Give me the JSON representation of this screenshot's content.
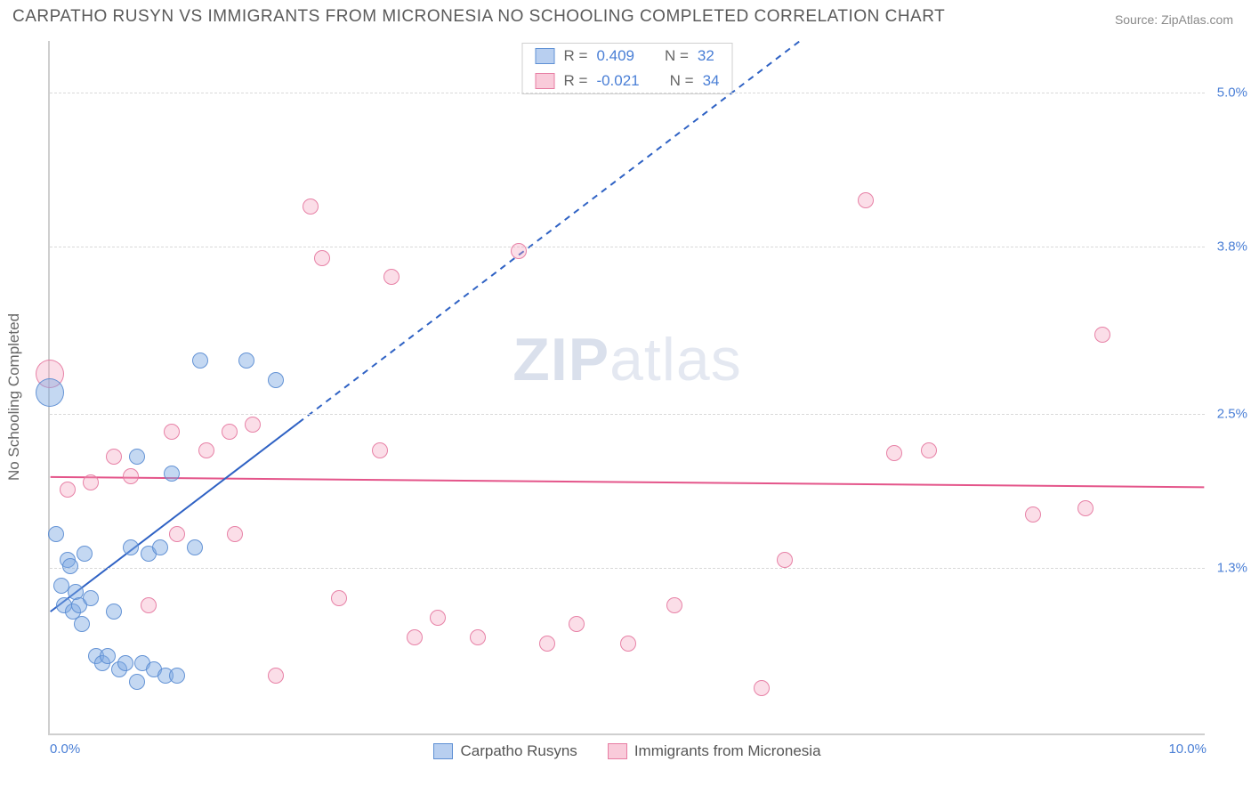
{
  "title": "CARPATHO RUSYN VS IMMIGRANTS FROM MICRONESIA NO SCHOOLING COMPLETED CORRELATION CHART",
  "source": "Source: ZipAtlas.com",
  "ylabel": "No Schooling Completed",
  "watermark_a": "ZIP",
  "watermark_b": "atlas",
  "chart": {
    "type": "scatter",
    "xlim": [
      0.0,
      10.0
    ],
    "ylim": [
      0.0,
      5.4
    ],
    "x_ticks": [
      {
        "v": 0.0,
        "label": "0.0%"
      },
      {
        "v": 10.0,
        "label": "10.0%"
      }
    ],
    "y_ticks": [
      {
        "v": 1.3,
        "label": "1.3%"
      },
      {
        "v": 2.5,
        "label": "2.5%"
      },
      {
        "v": 3.8,
        "label": "3.8%"
      },
      {
        "v": 5.0,
        "label": "5.0%"
      }
    ],
    "background_color": "#ffffff",
    "grid_color": "#d9d9d9",
    "point_radius": 9,
    "series": {
      "blue": {
        "label": "Carpatho Rusyns",
        "fill": "rgba(125,168,227,0.45)",
        "stroke": "rgba(90,140,210,0.9)",
        "R": "0.409",
        "N": "32",
        "trend": {
          "x1": 0.0,
          "y1": 0.95,
          "x2": 10.0,
          "y2": 7.8,
          "solid_xmax": 2.15,
          "color": "#2f62c4",
          "width": 2
        },
        "points": [
          {
            "x": 0.0,
            "y": 2.65,
            "r": 16
          },
          {
            "x": 0.05,
            "y": 1.55
          },
          {
            "x": 0.1,
            "y": 1.15
          },
          {
            "x": 0.12,
            "y": 1.0
          },
          {
            "x": 0.15,
            "y": 1.35
          },
          {
            "x": 0.18,
            "y": 1.3
          },
          {
            "x": 0.2,
            "y": 0.95
          },
          {
            "x": 0.22,
            "y": 1.1
          },
          {
            "x": 0.25,
            "y": 1.0
          },
          {
            "x": 0.28,
            "y": 0.85
          },
          {
            "x": 0.3,
            "y": 1.4
          },
          {
            "x": 0.35,
            "y": 1.05
          },
          {
            "x": 0.4,
            "y": 0.6
          },
          {
            "x": 0.45,
            "y": 0.55
          },
          {
            "x": 0.5,
            "y": 0.6
          },
          {
            "x": 0.55,
            "y": 0.95
          },
          {
            "x": 0.6,
            "y": 0.5
          },
          {
            "x": 0.65,
            "y": 0.55
          },
          {
            "x": 0.7,
            "y": 1.45
          },
          {
            "x": 0.75,
            "y": 0.4
          },
          {
            "x": 0.8,
            "y": 0.55
          },
          {
            "x": 0.85,
            "y": 1.4
          },
          {
            "x": 0.9,
            "y": 0.5
          },
          {
            "x": 0.95,
            "y": 1.45
          },
          {
            "x": 1.0,
            "y": 0.45
          },
          {
            "x": 1.05,
            "y": 2.02
          },
          {
            "x": 1.1,
            "y": 0.45
          },
          {
            "x": 1.25,
            "y": 1.45
          },
          {
            "x": 1.3,
            "y": 2.9
          },
          {
            "x": 1.7,
            "y": 2.9
          },
          {
            "x": 1.95,
            "y": 2.75
          },
          {
            "x": 0.75,
            "y": 2.15
          }
        ]
      },
      "pink": {
        "label": "Immigrants from Micronesia",
        "fill": "rgba(244,160,188,0.35)",
        "stroke": "rgba(230,120,160,0.9)",
        "R": "-0.021",
        "N": "34",
        "trend": {
          "x1": 0.0,
          "y1": 2.0,
          "x2": 10.0,
          "y2": 1.92,
          "solid_xmax": 10.0,
          "color": "#e4558a",
          "width": 2
        },
        "points": [
          {
            "x": 0.0,
            "y": 2.8,
            "r": 16
          },
          {
            "x": 0.15,
            "y": 1.9
          },
          {
            "x": 0.35,
            "y": 1.95
          },
          {
            "x": 0.55,
            "y": 2.15
          },
          {
            "x": 0.7,
            "y": 2.0
          },
          {
            "x": 0.85,
            "y": 1.0
          },
          {
            "x": 1.05,
            "y": 2.35
          },
          {
            "x": 1.1,
            "y": 1.55
          },
          {
            "x": 1.35,
            "y": 2.2
          },
          {
            "x": 1.55,
            "y": 2.35
          },
          {
            "x": 1.6,
            "y": 1.55
          },
          {
            "x": 1.75,
            "y": 2.4
          },
          {
            "x": 1.95,
            "y": 0.45
          },
          {
            "x": 2.25,
            "y": 4.1
          },
          {
            "x": 2.35,
            "y": 3.7
          },
          {
            "x": 2.5,
            "y": 1.05
          },
          {
            "x": 2.85,
            "y": 2.2
          },
          {
            "x": 2.95,
            "y": 3.55
          },
          {
            "x": 3.15,
            "y": 0.75
          },
          {
            "x": 3.35,
            "y": 0.9
          },
          {
            "x": 3.7,
            "y": 0.75
          },
          {
            "x": 4.05,
            "y": 3.75
          },
          {
            "x": 4.3,
            "y": 0.7
          },
          {
            "x": 4.55,
            "y": 0.85
          },
          {
            "x": 5.0,
            "y": 0.7
          },
          {
            "x": 5.4,
            "y": 1.0
          },
          {
            "x": 6.15,
            "y": 0.35
          },
          {
            "x": 6.35,
            "y": 1.35
          },
          {
            "x": 7.05,
            "y": 4.15
          },
          {
            "x": 7.3,
            "y": 2.18
          },
          {
            "x": 7.6,
            "y": 2.2
          },
          {
            "x": 8.5,
            "y": 1.7
          },
          {
            "x": 8.95,
            "y": 1.75
          },
          {
            "x": 9.1,
            "y": 3.1
          }
        ]
      }
    }
  },
  "legend_box": {
    "r_label": "R =",
    "n_label": "N ="
  }
}
